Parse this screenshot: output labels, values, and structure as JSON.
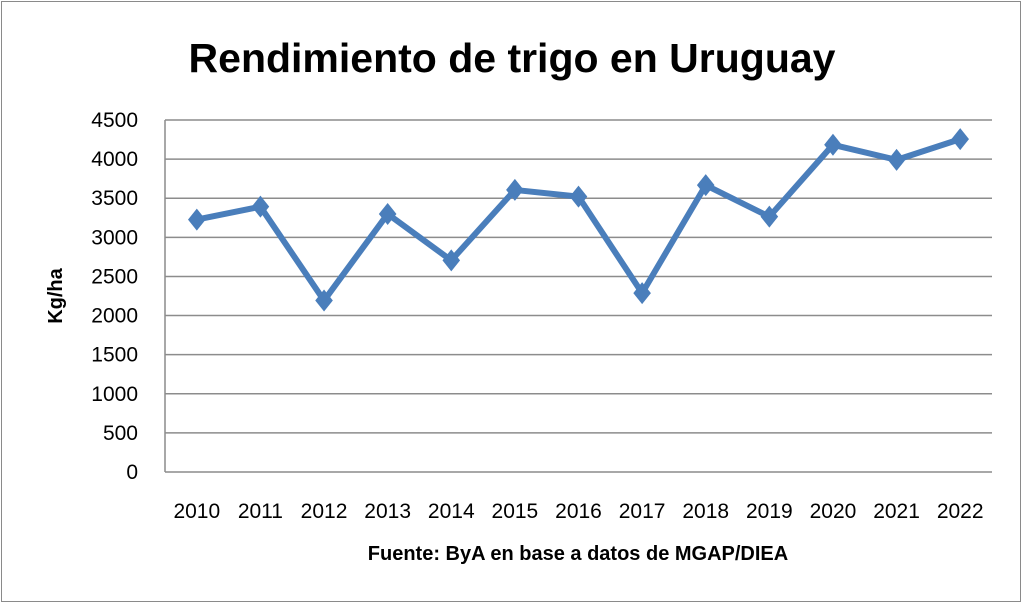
{
  "chart_data": {
    "type": "line",
    "title": "Rendimiento de trigo en Uruguay",
    "xlabel": "Fuente: ByA en base a datos de MGAP/DIEA",
    "ylabel": "Kg/ha",
    "categories": [
      "2010",
      "2011",
      "2012",
      "2013",
      "2014",
      "2015",
      "2016",
      "2017",
      "2018",
      "2019",
      "2020",
      "2021",
      "2022"
    ],
    "series": [
      {
        "name": "Rendimiento",
        "values": [
          3227,
          3392,
          2192,
          3299,
          2705,
          3606,
          3520,
          2287,
          3667,
          3264,
          4183,
          3990,
          4256
        ]
      }
    ],
    "ylim": [
      0,
      4500
    ],
    "yticks": [
      "0",
      "500",
      "1000",
      "1500",
      "2000",
      "2500",
      "3000",
      "3500",
      "4000",
      "4500"
    ],
    "grid": true,
    "legend": "none",
    "color": "#4a7ebb"
  }
}
